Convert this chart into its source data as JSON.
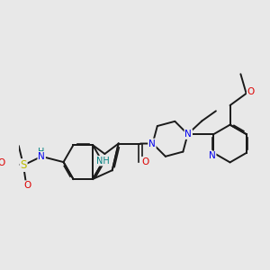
{
  "bg_color": "#e8e8e8",
  "bond_color": "#1a1a1a",
  "bond_width": 1.4,
  "atom_colors": {
    "N": "#0000ee",
    "O": "#dd0000",
    "S": "#bbbb00",
    "NH": "#008080",
    "C": "#1a1a1a"
  },
  "font_size": 7.5
}
